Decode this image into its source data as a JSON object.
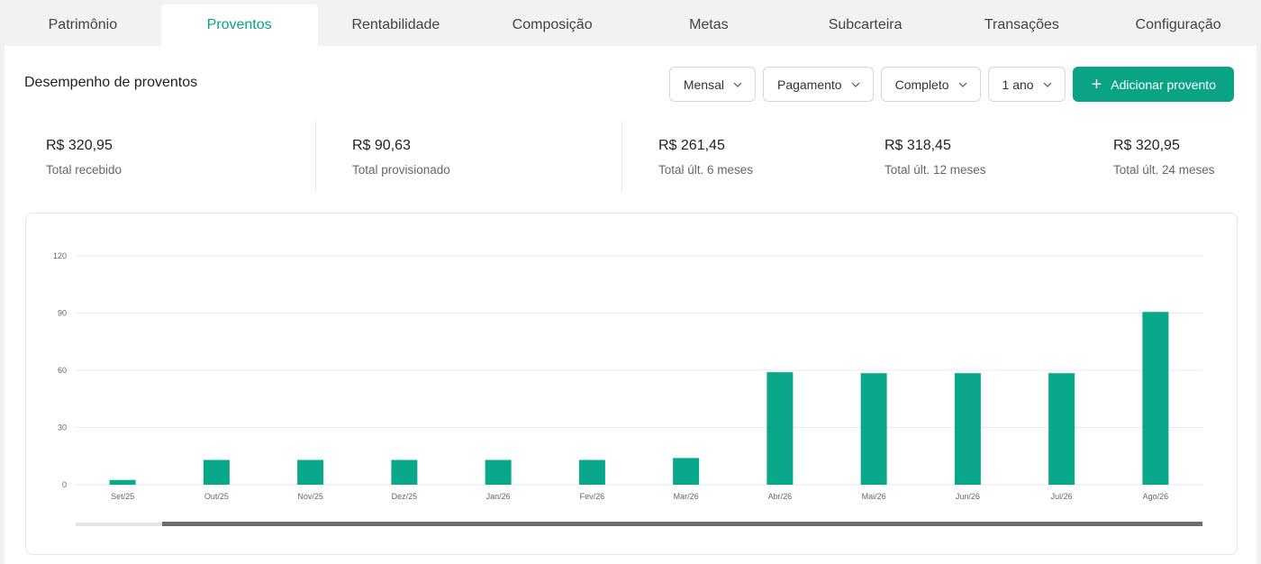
{
  "tabs": [
    {
      "label": "Patrimônio"
    },
    {
      "label": "Proventos",
      "active": true
    },
    {
      "label": "Rentabilidade"
    },
    {
      "label": "Composição"
    },
    {
      "label": "Metas"
    },
    {
      "label": "Subcarteira"
    },
    {
      "label": "Transações"
    },
    {
      "label": "Configuração"
    }
  ],
  "header": {
    "title": "Desempenho de proventos"
  },
  "filters": {
    "period": "Mensal",
    "date_type": "Pagamento",
    "mode": "Completo",
    "range": "1 ano",
    "add_label": "Adicionar proventо"
  },
  "stats": [
    {
      "value": "R$ 320,95",
      "label": "Total recebido"
    },
    {
      "value": "R$ 90,63",
      "label": "Total provisionado"
    },
    {
      "value": "R$ 261,45",
      "label": "Total últ. 6 meses"
    },
    {
      "value": "R$ 318,45",
      "label": "Total últ. 12 meses"
    },
    {
      "value": "R$ 320,95",
      "label": "Total últ. 24 meses"
    }
  ],
  "colors": {
    "accent": "#0aa383",
    "bar": "#0aa88a",
    "grid": "#e8eaed"
  },
  "chart_data": {
    "type": "bar",
    "categories": [
      "Set/25",
      "Out/25",
      "Nov/25",
      "Dez/25",
      "Jan/26",
      "Fev/26",
      "Mar/26",
      "Abr/26",
      "Mai/26",
      "Jun/26",
      "Jul/26",
      "Ago/26"
    ],
    "values": [
      2.5,
      13,
      13,
      13,
      13,
      13,
      14,
      59,
      58.5,
      58.5,
      58.5,
      90.6
    ],
    "yticks": [
      0,
      30,
      60,
      90,
      120
    ],
    "ylim": [
      0,
      120
    ],
    "grid": true,
    "legend": "none"
  }
}
